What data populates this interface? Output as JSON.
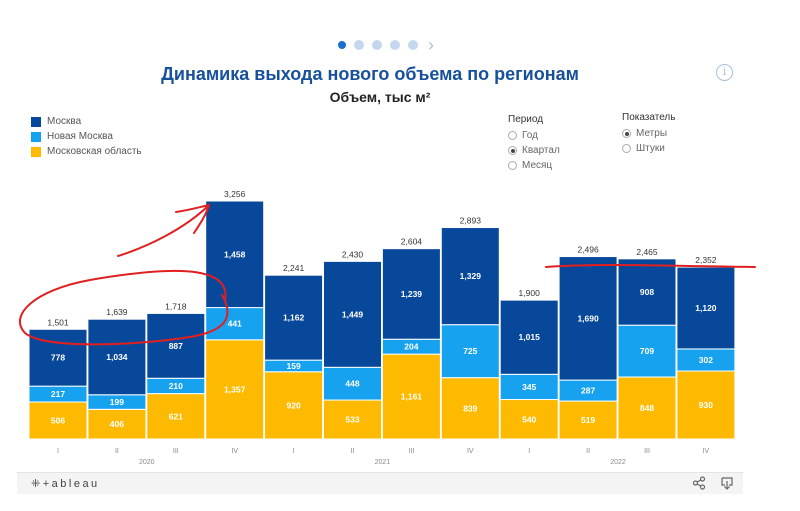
{
  "pager": {
    "count": 5,
    "active_index": 0
  },
  "title": "Динамика выхода нового объема по регионам",
  "subtitle": "Объем, тыс м²",
  "info_icon": "info-icon",
  "legend": [
    {
      "label": "Москва",
      "color": "#08489a"
    },
    {
      "label": "Новая Москва",
      "color": "#17a2ef"
    },
    {
      "label": "Московская область",
      "color": "#fdba00"
    }
  ],
  "filters": {
    "period": {
      "title": "Период",
      "options": [
        "Год",
        "Квартал",
        "Месяц"
      ],
      "selected": "Квартал"
    },
    "indicator": {
      "title": "Показатель",
      "options": [
        "Метры",
        "Штуки"
      ],
      "selected": "Метры"
    }
  },
  "chart_data": {
    "type": "bar",
    "stacked": true,
    "categories": [
      "I",
      "II",
      "III",
      "IV",
      "I",
      "II",
      "III",
      "IV",
      "I",
      "II",
      "III",
      "IV"
    ],
    "groups": [
      {
        "label": "2020",
        "from": 0,
        "to": 3
      },
      {
        "label": "2021",
        "from": 4,
        "to": 7
      },
      {
        "label": "2022",
        "from": 8,
        "to": 11
      }
    ],
    "series": [
      {
        "name": "Московская область",
        "color": "#fdba00",
        "values": [
          506,
          406,
          621,
          1357,
          920,
          533,
          1161,
          839,
          540,
          519,
          848,
          930
        ],
        "labels": [
          "506",
          "406",
          "621",
          "1,357",
          "920",
          "533",
          "1,161",
          "839",
          "540",
          "519",
          "848",
          "930"
        ]
      },
      {
        "name": "Новая Москва",
        "color": "#17a2ef",
        "values": [
          217,
          199,
          210,
          441,
          159,
          448,
          204,
          725,
          345,
          287,
          709,
          302
        ],
        "labels": [
          "217",
          "199",
          "210",
          "441",
          "159",
          "448",
          "204",
          "725",
          "345",
          "287",
          "709",
          "302"
        ]
      },
      {
        "name": "Москва",
        "color": "#08489a",
        "values": [
          778,
          1034,
          887,
          1458,
          1162,
          1449,
          1239,
          1329,
          1015,
          1690,
          908,
          1120
        ],
        "labels": [
          "778",
          "1,034",
          "887",
          "1,458",
          "1,162",
          "1,449",
          "1,239",
          "1,329",
          "1,015",
          "1,690",
          "908",
          "1,120"
        ]
      }
    ],
    "totals": [
      1501,
      1639,
      1718,
      3256,
      2241,
      2430,
      2604,
      2893,
      1900,
      2496,
      2465,
      2352
    ],
    "total_labels": [
      "1,501",
      "1,639",
      "1,718",
      "3,256",
      "2,241",
      "2,430",
      "2,604",
      "2,893",
      "1,900",
      "2,496",
      "2,465",
      "2,352"
    ],
    "ylim": [
      0,
      3256
    ],
    "xlabel": "",
    "ylabel": "",
    "grid": false,
    "legend_position": "top-left",
    "annotations": [
      {
        "type": "hand-drawn-ellipse",
        "color": "#e02020",
        "around_categories": [
          0,
          2
        ]
      },
      {
        "type": "hand-drawn-arrow",
        "color": "#e02020",
        "pointing_to_category": 3
      },
      {
        "type": "hand-drawn-line",
        "color": "#e02020",
        "along_categories": [
          9,
          11
        ]
      }
    ]
  },
  "bottombar": {
    "logo": "+ableau",
    "share_icon": "share-icon",
    "download_icon": "download-icon"
  }
}
